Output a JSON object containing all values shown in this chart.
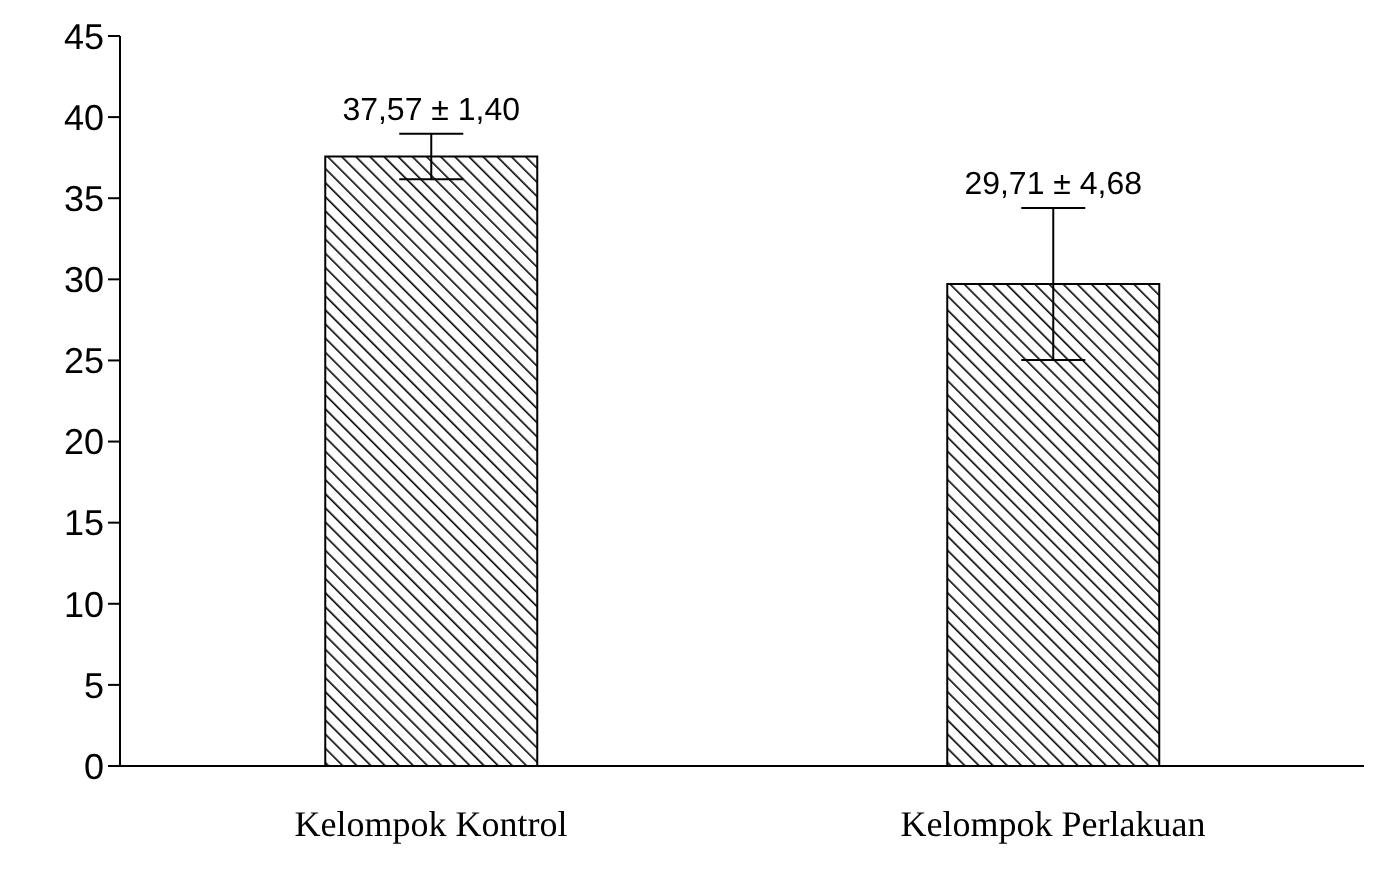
{
  "chart_data": {
    "type": "bar",
    "categories": [
      "Kelompok Kontrol",
      "Kelompok Perlakuan"
    ],
    "values": [
      37.57,
      29.71
    ],
    "errors": [
      1.4,
      4.68
    ],
    "value_labels": [
      "37,57 ± 1,40",
      "29,71 ± 4,68"
    ],
    "color": "#000000",
    "ylim": [
      0,
      45
    ],
    "yticks": [
      0,
      5,
      10,
      15,
      20,
      25,
      30,
      35,
      40,
      45
    ],
    "grid": false,
    "legend": false
  }
}
